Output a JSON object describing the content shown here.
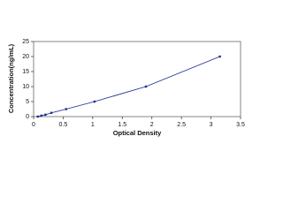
{
  "chart_data": {
    "type": "line",
    "x_label": "Optical Density",
    "y_label": "Concentration(ng/mL)",
    "x": [
      0.07,
      0.13,
      0.2,
      0.3,
      0.55,
      1.03,
      1.9,
      3.15
    ],
    "values": [
      0,
      0.312,
      0.625,
      1.25,
      2.5,
      5,
      10,
      20
    ],
    "color": "#1f2f8f",
    "xlim": [
      0,
      3.5
    ],
    "xticks": [
      0,
      0.5,
      1,
      1.5,
      2,
      2.5,
      3,
      3.5
    ],
    "ylim": [
      0,
      25
    ],
    "yticks": [
      0,
      5,
      10,
      15,
      20,
      25
    ],
    "grid": false
  }
}
